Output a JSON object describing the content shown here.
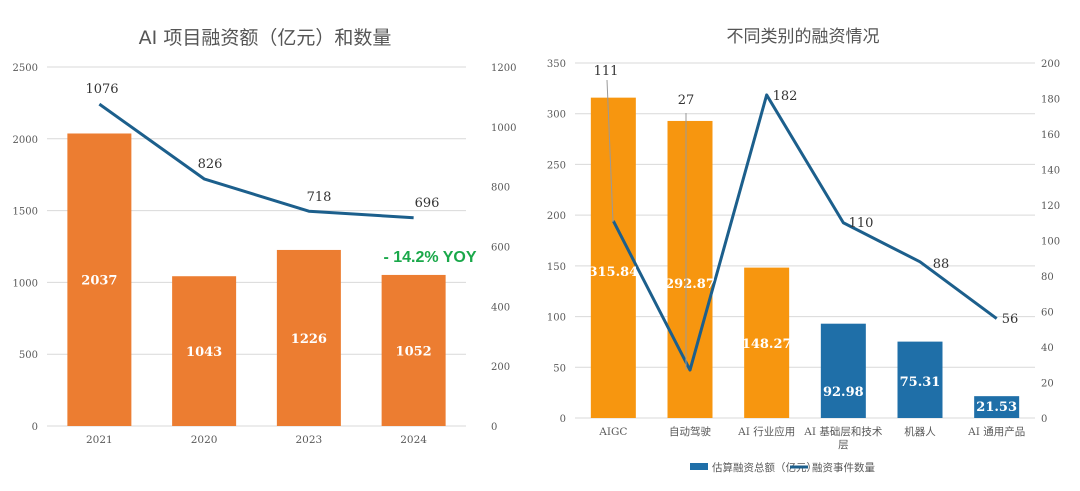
{
  "colors": {
    "orange_left": "#ec7d31",
    "orange_right": "#f7960f",
    "blue": "#1f6fa8",
    "line": "#1c5f8c",
    "grid": "#d9d9d9",
    "yoy": "#1aa84a"
  },
  "chart_data": [
    {
      "type": "bar+line",
      "title": "AI 项目融资额（亿元）和数量",
      "categories": [
        "2021",
        "2020",
        "2023",
        "2024"
      ],
      "series": [
        {
          "name": "融资额（亿元）",
          "type": "bar",
          "axis": "left",
          "values": [
            2037,
            1043,
            1226,
            1052
          ]
        },
        {
          "name": "数量",
          "type": "line",
          "axis": "right",
          "values": [
            1076,
            826,
            718,
            696
          ]
        }
      ],
      "ylim_left": [
        0,
        2500
      ],
      "yticks_left": [
        0,
        500,
        1000,
        1500,
        2000,
        2500
      ],
      "ylim_right": [
        0,
        1200
      ],
      "yticks_right": [
        0,
        200,
        400,
        600,
        800,
        1000,
        1200
      ],
      "annotations": [
        "- 14.2% YOY"
      ],
      "grid": true
    },
    {
      "type": "bar+line",
      "title": "不同类别的融资情况",
      "categories": [
        "AIGC",
        "自动驾驶",
        "AI 行业应用",
        "AI 基础层和技术层",
        "机器人",
        "AI 通用产品"
      ],
      "category_lines": [
        [
          "AIGC"
        ],
        [
          "自动驾驶"
        ],
        [
          "AI 行业应用"
        ],
        [
          "AI 基础层和技术",
          "层"
        ],
        [
          "机器人"
        ],
        [
          "AI 通用产品"
        ]
      ],
      "series": [
        {
          "name": "估算融资总额（亿元）",
          "type": "bar",
          "axis": "left",
          "values": [
            315.84,
            292.87,
            148.27,
            92.98,
            75.31,
            21.53
          ],
          "value_labels": [
            "315.84",
            "292.87",
            "148.27",
            "92.98",
            "75.31",
            "21.53"
          ],
          "bar_colors": [
            "orange",
            "orange",
            "orange",
            "blue",
            "blue",
            "blue"
          ]
        },
        {
          "name": "融资事件数量",
          "type": "line",
          "axis": "right",
          "values": [
            111,
            27,
            182,
            110,
            88,
            56
          ]
        }
      ],
      "ylim_left": [
        0,
        350
      ],
      "yticks_left": [
        0,
        50,
        100,
        150,
        200,
        250,
        300,
        350
      ],
      "ylim_right": [
        0,
        200
      ],
      "yticks_right": [
        0,
        20,
        40,
        60,
        80,
        100,
        120,
        140,
        160,
        180,
        200
      ],
      "legend": "bottom",
      "grid": true
    }
  ]
}
